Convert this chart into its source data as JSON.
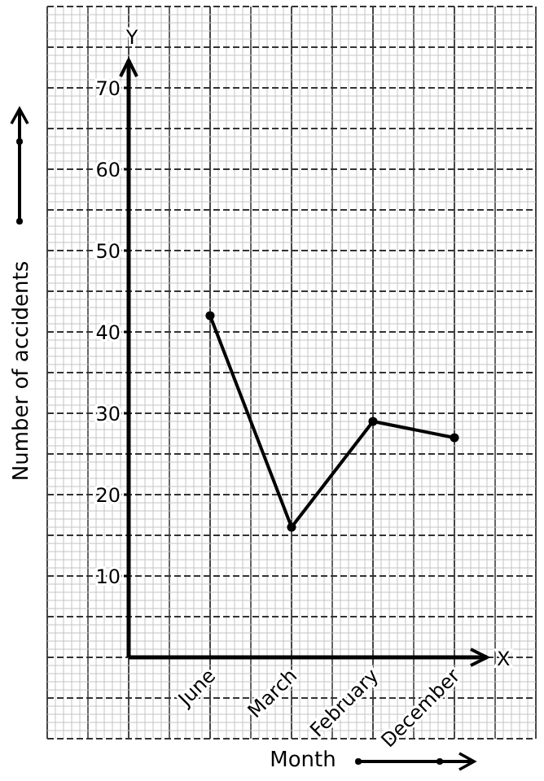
{
  "chart_data": {
    "type": "line",
    "xlabel": "Month",
    "ylabel": "Number of accidents",
    "categories": [
      "June",
      "March",
      "February",
      "December"
    ],
    "series": [
      {
        "color": "#000000",
        "values": [
          42,
          16,
          29,
          27
        ]
      }
    ],
    "ylim": [
      0,
      70
    ],
    "yticks": [
      10,
      20,
      30,
      40,
      50,
      60,
      70
    ],
    "grid": true,
    "marker": "circle",
    "line_style": "solid",
    "annotations": [
      "Y",
      "X"
    ]
  }
}
